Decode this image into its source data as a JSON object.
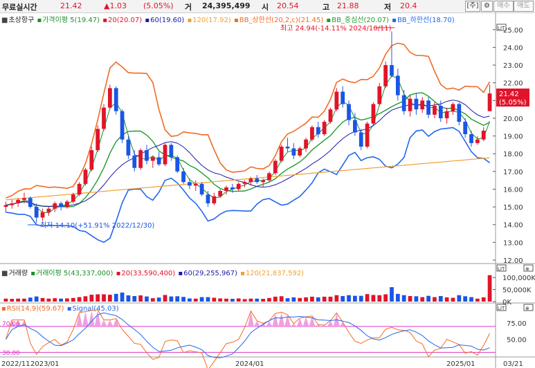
{
  "topbar": {
    "realtime_label": "무료실시간",
    "price": "21.42",
    "change": "▲1.03",
    "change_pct": "(5.05%)",
    "volume_label": "거",
    "volume": "24,395,499",
    "open_label": "시",
    "open": "20.54",
    "high_label": "고",
    "high": "21.88",
    "low_label": "저",
    "low": "20.4",
    "btn_stock": "[주]",
    "btn_settings": "⚙",
    "btn_buy": "매수",
    "btn_sell": "매도"
  },
  "price_legend": {
    "title": "초상항구",
    "ma_label": "가격이평 5(19.47)",
    "ma20": "20(20.07)",
    "ma60": "60(19.60)",
    "ma120": "120(17.92)",
    "bb_upper": "BB_상한선(20,2,c)(21.45)",
    "bb_mid": "BB_중심선(20.07)",
    "bb_lower": "BB_하한선(18.70)"
  },
  "volume_legend": {
    "title": "거래량",
    "ma_label": "거래이평 5(43,337,000)",
    "ma20": "20(33,590,400)",
    "ma60": "60(29,255,967)",
    "ma120": "120(21,837,592)"
  },
  "rsi_legend": {
    "rsi": "RSI(14,9)(59.67)",
    "signal": "Signal(45.03)"
  },
  "annotations": {
    "high": "최고 24.94(-14.11% 2024/10/11)",
    "low": "최저 14.10(+51.91% 2022/12/30)",
    "price_tag_1": "21.42",
    "price_tag_2": "(5.05%)",
    "rsi_70": "70.00",
    "rsi_30": "30.00"
  },
  "colors": {
    "up": "#e0142a",
    "down": "#1a55e6",
    "ma5": "#1a8f2a",
    "ma20": "#e0142a",
    "ma60": "#1a1aa8",
    "ma120": "#f0a030",
    "bb_upper": "#f26a22",
    "bb_mid": "#1f9b2c",
    "bb_lower": "#2266ee"
  },
  "chart_data": {
    "type": "candlestick",
    "price_axis": {
      "range": [
        12,
        25.5
      ],
      "ticks": [
        "25.00",
        "24.00",
        "23.00",
        "22.00",
        "21.00",
        "20.00",
        "19.00",
        "18.00",
        "17.00",
        "16.00",
        "15.00",
        "14.00",
        "13.00",
        "12.00"
      ]
    },
    "volume_axis": {
      "range": [
        0,
        115000
      ],
      "ticks": [
        "100,000K",
        "50,000K",
        "0K"
      ]
    },
    "rsi_axis": {
      "range": [
        25,
        88
      ],
      "ticks": [
        "75.00",
        "50.00"
      ],
      "levels": [
        70,
        30
      ]
    },
    "x_labels": [
      "2022/11",
      "2023/01",
      "2024/01",
      "2025/01",
      "03/21"
    ],
    "ohlc": [
      [
        15.0,
        15.3,
        14.7,
        15.1
      ],
      [
        15.1,
        15.4,
        14.9,
        15.2
      ],
      [
        15.2,
        15.5,
        15.0,
        15.4
      ],
      [
        15.4,
        15.8,
        15.2,
        15.5
      ],
      [
        15.5,
        15.6,
        14.9,
        15.0
      ],
      [
        15.0,
        15.2,
        14.1,
        14.4
      ],
      [
        14.4,
        14.9,
        14.2,
        14.7
      ],
      [
        14.7,
        15.0,
        14.5,
        14.9
      ],
      [
        14.9,
        15.3,
        14.7,
        15.2
      ],
      [
        15.2,
        15.3,
        14.8,
        15.0
      ],
      [
        15.0,
        15.4,
        14.9,
        15.3
      ],
      [
        15.3,
        15.8,
        15.2,
        15.7
      ],
      [
        15.7,
        16.4,
        15.6,
        16.3
      ],
      [
        16.3,
        17.2,
        16.2,
        17.1
      ],
      [
        17.1,
        18.4,
        17.0,
        18.2
      ],
      [
        18.2,
        19.6,
        18.1,
        19.4
      ],
      [
        19.4,
        20.8,
        19.3,
        20.6
      ],
      [
        20.6,
        21.9,
        20.5,
        21.7
      ],
      [
        21.7,
        21.8,
        20.2,
        20.4
      ],
      [
        20.4,
        20.5,
        18.6,
        18.8
      ],
      [
        18.8,
        19.0,
        17.7,
        17.9
      ],
      [
        17.9,
        18.2,
        17.0,
        17.2
      ],
      [
        17.2,
        18.3,
        17.1,
        18.2
      ],
      [
        18.2,
        18.5,
        17.4,
        17.6
      ],
      [
        17.6,
        17.9,
        17.2,
        17.8
      ],
      [
        17.8,
        18.1,
        17.3,
        17.4
      ],
      [
        17.4,
        18.6,
        17.3,
        18.5
      ],
      [
        18.5,
        18.6,
        17.6,
        17.8
      ],
      [
        17.8,
        17.9,
        16.9,
        17.0
      ],
      [
        17.0,
        17.2,
        16.3,
        16.4
      ],
      [
        16.4,
        16.6,
        16.0,
        16.2
      ],
      [
        16.2,
        16.5,
        15.9,
        16.3
      ],
      [
        16.3,
        16.4,
        15.6,
        15.7
      ],
      [
        15.7,
        15.9,
        15.0,
        15.2
      ],
      [
        15.2,
        15.8,
        15.1,
        15.6
      ],
      [
        15.6,
        16.0,
        15.5,
        15.9
      ],
      [
        15.9,
        16.2,
        15.7,
        16.1
      ],
      [
        16.1,
        16.3,
        15.8,
        16.0
      ],
      [
        16.0,
        16.4,
        15.9,
        16.3
      ],
      [
        16.3,
        16.5,
        16.1,
        16.4
      ],
      [
        16.4,
        16.7,
        16.2,
        16.6
      ],
      [
        16.6,
        16.8,
        16.3,
        16.4
      ],
      [
        16.4,
        16.6,
        16.1,
        16.5
      ],
      [
        16.5,
        17.0,
        16.4,
        16.9
      ],
      [
        16.9,
        17.7,
        16.8,
        17.6
      ],
      [
        17.6,
        18.5,
        17.5,
        18.4
      ],
      [
        18.4,
        18.9,
        18.1,
        18.3
      ],
      [
        18.3,
        18.6,
        17.7,
        17.9
      ],
      [
        17.9,
        18.4,
        17.8,
        18.3
      ],
      [
        18.3,
        18.9,
        18.1,
        18.8
      ],
      [
        18.8,
        19.6,
        18.7,
        19.5
      ],
      [
        19.5,
        19.8,
        18.9,
        19.1
      ],
      [
        19.1,
        19.9,
        19.0,
        19.8
      ],
      [
        19.8,
        20.6,
        19.7,
        20.5
      ],
      [
        20.5,
        21.7,
        20.4,
        21.5
      ],
      [
        21.5,
        21.8,
        20.6,
        20.8
      ],
      [
        20.8,
        21.0,
        19.6,
        19.9
      ],
      [
        19.9,
        20.3,
        19.0,
        19.2
      ],
      [
        19.2,
        19.4,
        18.2,
        18.4
      ],
      [
        18.4,
        19.8,
        18.3,
        19.7
      ],
      [
        19.7,
        20.9,
        19.6,
        20.8
      ],
      [
        20.8,
        22.0,
        20.7,
        21.8
      ],
      [
        21.8,
        23.2,
        21.7,
        23.0
      ],
      [
        23.0,
        24.9,
        22.3,
        22.4
      ],
      [
        22.4,
        22.8,
        21.0,
        21.3
      ],
      [
        21.3,
        21.6,
        20.2,
        20.4
      ],
      [
        20.4,
        21.3,
        20.1,
        21.1
      ],
      [
        21.1,
        21.4,
        20.2,
        20.5
      ],
      [
        20.5,
        21.2,
        20.3,
        21.0
      ],
      [
        21.0,
        21.2,
        20.0,
        20.2
      ],
      [
        20.2,
        20.9,
        20.0,
        20.7
      ],
      [
        20.7,
        21.0,
        19.8,
        20.0
      ],
      [
        20.0,
        20.6,
        19.7,
        20.4
      ],
      [
        20.4,
        20.9,
        20.2,
        20.8
      ],
      [
        20.8,
        20.9,
        19.6,
        19.8
      ],
      [
        19.8,
        20.0,
        18.9,
        19.1
      ],
      [
        19.1,
        19.3,
        18.4,
        18.6
      ],
      [
        18.6,
        19.0,
        18.5,
        18.8
      ],
      [
        18.8,
        19.5,
        18.7,
        19.3
      ],
      [
        20.4,
        21.9,
        20.4,
        21.4
      ]
    ],
    "volume_last_k": 24395.5
  }
}
